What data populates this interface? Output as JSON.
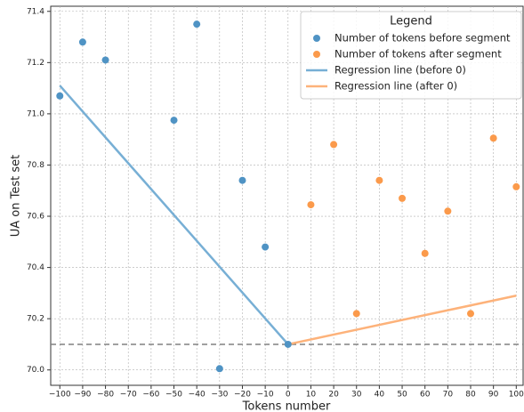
{
  "chart_data": {
    "type": "scatter",
    "xlabel": "Tokens number",
    "ylabel": "UA on Test set",
    "legend_title": "Legend",
    "legend": "upper right",
    "grid": true,
    "xlim": [
      -104,
      103
    ],
    "ylim": [
      69.94,
      71.42
    ],
    "xticks": [
      {
        "value": -100,
        "label": "−100"
      },
      {
        "value": -90,
        "label": "−90"
      },
      {
        "value": -80,
        "label": "−80"
      },
      {
        "value": -70,
        "label": "−70"
      },
      {
        "value": -60,
        "label": "−60"
      },
      {
        "value": -50,
        "label": "−50"
      },
      {
        "value": -40,
        "label": "−40"
      },
      {
        "value": -30,
        "label": "−30"
      },
      {
        "value": -20,
        "label": "−20"
      },
      {
        "value": -10,
        "label": "−10"
      },
      0,
      10,
      20,
      30,
      40,
      50,
      60,
      70,
      80,
      90,
      100
    ],
    "yticks": [
      {
        "value": 70,
        "label": "70.0"
      },
      70.2,
      70.4,
      70.6,
      70.8,
      {
        "value": 71,
        "label": "71.0"
      },
      71.2,
      71.4
    ],
    "hline": {
      "value": 70.1,
      "color": "#808080"
    },
    "series": [
      {
        "name": "Number of tokens before segment",
        "style": "scatter",
        "color": "#4f93c4",
        "x": [
          -100,
          -90,
          -80,
          -50,
          -40,
          -30,
          -20,
          -10,
          0
        ],
        "values": [
          71.07,
          71.28,
          71.21,
          70.975,
          71.35,
          70.005,
          70.74,
          70.48,
          70.1
        ]
      },
      {
        "name": "Number of tokens after segment",
        "style": "scatter",
        "color": "#fb9a4b",
        "x": [
          10,
          20,
          30,
          40,
          50,
          60,
          70,
          80,
          90,
          100
        ],
        "values": [
          70.645,
          70.88,
          70.22,
          70.74,
          70.67,
          70.455,
          70.62,
          70.22,
          70.905,
          70.715
        ]
      },
      {
        "name": "Regression line (before 0)",
        "style": "line",
        "color": "#77afd5",
        "x": [
          -100,
          0
        ],
        "values": [
          71.11,
          70.1
        ]
      },
      {
        "name": "Regression line (after 0)",
        "style": "line",
        "color": "#fdb27a",
        "x": [
          0,
          100
        ],
        "values": [
          70.1,
          70.29
        ]
      }
    ]
  }
}
